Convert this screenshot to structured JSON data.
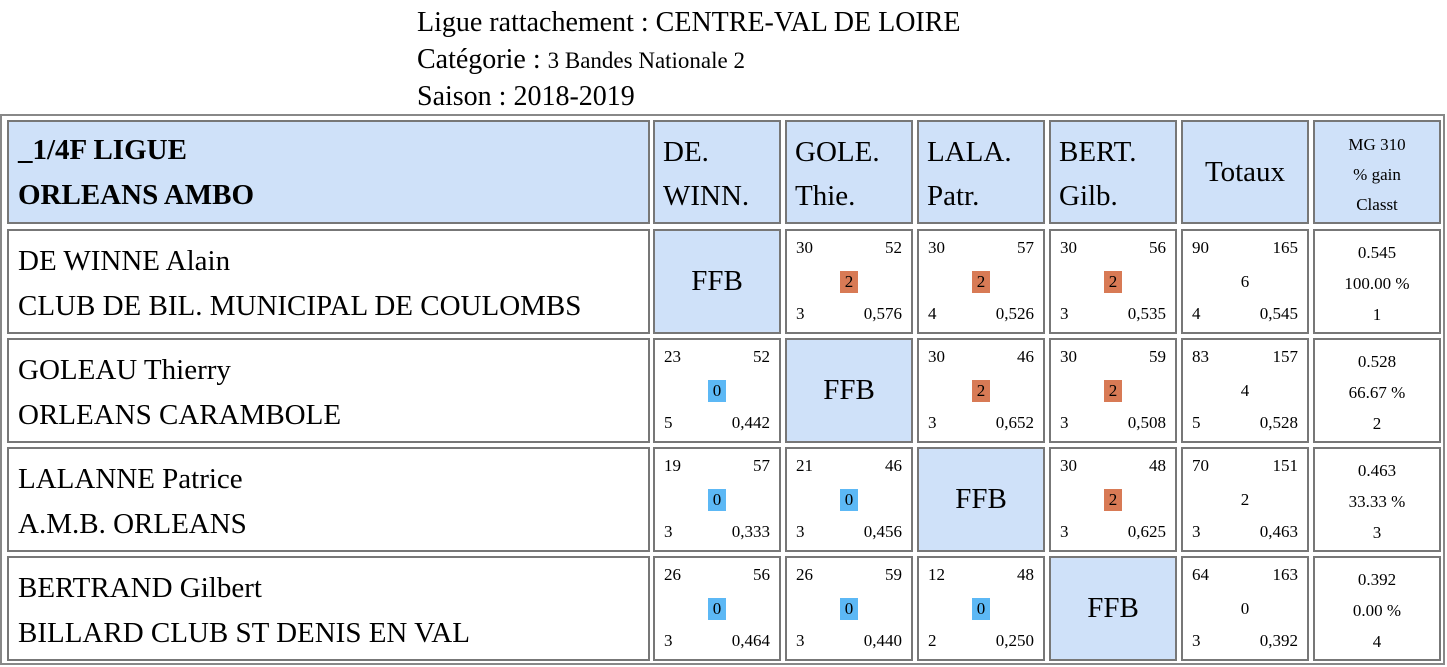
{
  "header": {
    "ligue": "Ligue rattachement : CENTRE-VAL DE LOIRE",
    "categorie_label": "Catégorie : ",
    "categorie_value": "3 Bandes Nationale 2",
    "saison": "Saison : 2018-2019"
  },
  "table": {
    "corner_line1": "_1/4F LIGUE",
    "corner_line2": "ORLEANS AMBO",
    "columns": [
      {
        "line1": "DE.",
        "line2": "WINN."
      },
      {
        "line1": "GOLE.",
        "line2": "Thie."
      },
      {
        "line1": "LALA.",
        "line2": "Patr."
      },
      {
        "line1": "BERT.",
        "line2": "Gilb."
      }
    ],
    "totaux": "Totaux",
    "mg_line1": "MG 310",
    "mg_line2": "% gain",
    "mg_line3": "Classt",
    "ffb": "FFB",
    "colors": {
      "header_bg": "#cfe1f9",
      "win_badge": "#d87a55",
      "loss_badge": "#5cb8f5"
    },
    "rows": [
      {
        "name": "DE WINNE Alain",
        "club": "CLUB DE BIL. MUNICIPAL DE COULOMBS",
        "matches": [
          null,
          {
            "points": "30",
            "reprises": "52",
            "result": "2",
            "serie": "3",
            "moyenne": "0,576"
          },
          {
            "points": "30",
            "reprises": "57",
            "result": "2",
            "serie": "4",
            "moyenne": "0,526"
          },
          {
            "points": "30",
            "reprises": "56",
            "result": "2",
            "serie": "3",
            "moyenne": "0,535"
          }
        ],
        "totals": {
          "points": "90",
          "reprises": "165",
          "result": "6",
          "serie": "4",
          "moyenne": "0,545"
        },
        "mg": "0.545",
        "gain": "100.00 %",
        "classt": "1"
      },
      {
        "name": "GOLEAU Thierry",
        "club": "ORLEANS CARAMBOLE",
        "matches": [
          {
            "points": "23",
            "reprises": "52",
            "result": "0",
            "serie": "5",
            "moyenne": "0,442"
          },
          null,
          {
            "points": "30",
            "reprises": "46",
            "result": "2",
            "serie": "3",
            "moyenne": "0,652"
          },
          {
            "points": "30",
            "reprises": "59",
            "result": "2",
            "serie": "3",
            "moyenne": "0,508"
          }
        ],
        "totals": {
          "points": "83",
          "reprises": "157",
          "result": "4",
          "serie": "5",
          "moyenne": "0,528"
        },
        "mg": "0.528",
        "gain": "66.67 %",
        "classt": "2"
      },
      {
        "name": "LALANNE Patrice",
        "club": "A.M.B. ORLEANS",
        "matches": [
          {
            "points": "19",
            "reprises": "57",
            "result": "0",
            "serie": "3",
            "moyenne": "0,333"
          },
          {
            "points": "21",
            "reprises": "46",
            "result": "0",
            "serie": "3",
            "moyenne": "0,456"
          },
          null,
          {
            "points": "30",
            "reprises": "48",
            "result": "2",
            "serie": "3",
            "moyenne": "0,625"
          }
        ],
        "totals": {
          "points": "70",
          "reprises": "151",
          "result": "2",
          "serie": "3",
          "moyenne": "0,463"
        },
        "mg": "0.463",
        "gain": "33.33 %",
        "classt": "3"
      },
      {
        "name": "BERTRAND Gilbert",
        "club": "BILLARD CLUB ST DENIS EN VAL",
        "matches": [
          {
            "points": "26",
            "reprises": "56",
            "result": "0",
            "serie": "3",
            "moyenne": "0,464"
          },
          {
            "points": "26",
            "reprises": "59",
            "result": "0",
            "serie": "3",
            "moyenne": "0,440"
          },
          {
            "points": "12",
            "reprises": "48",
            "result": "0",
            "serie": "2",
            "moyenne": "0,250"
          },
          null
        ],
        "totals": {
          "points": "64",
          "reprises": "163",
          "result": "0",
          "serie": "3",
          "moyenne": "0,392"
        },
        "mg": "0.392",
        "gain": "0.00 %",
        "classt": "4"
      }
    ]
  }
}
